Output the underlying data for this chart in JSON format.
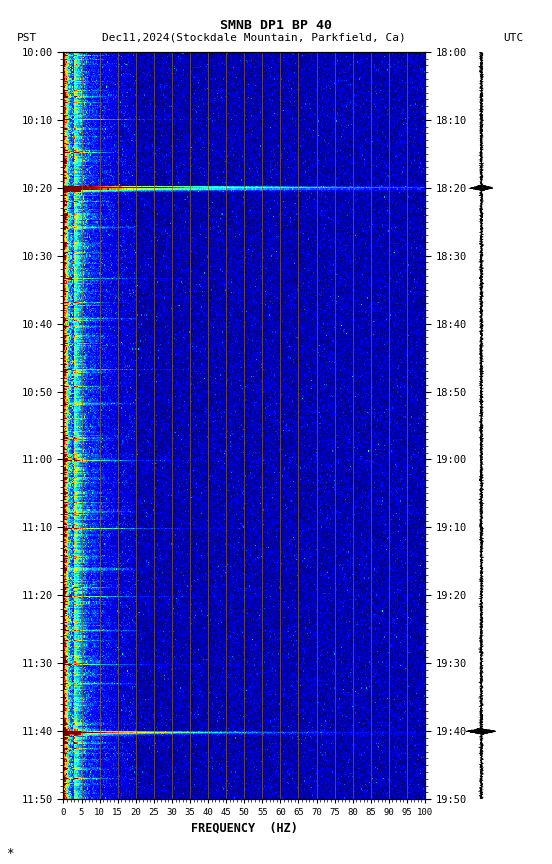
{
  "title_line1": "SMNB DP1 BP 40",
  "title_line2_left": "PST",
  "title_line2_center": "Dec11,2024(Stockdale Mountain, Parkfield, Ca)",
  "title_line2_right": "UTC",
  "xlabel": "FREQUENCY  (HZ)",
  "freq_min": 0,
  "freq_max": 100,
  "duration_minutes": 110,
  "freq_ticks": [
    0,
    5,
    10,
    15,
    20,
    25,
    30,
    35,
    40,
    45,
    50,
    55,
    60,
    65,
    70,
    75,
    80,
    85,
    90,
    95,
    100
  ],
  "time_ticks_pst": [
    "10:00",
    "10:10",
    "10:20",
    "10:30",
    "10:40",
    "10:50",
    "11:00",
    "11:10",
    "11:20",
    "11:30",
    "11:40",
    "11:50"
  ],
  "time_ticks_utc": [
    "18:00",
    "18:10",
    "18:20",
    "18:30",
    "18:40",
    "18:50",
    "19:00",
    "19:10",
    "19:20",
    "19:30",
    "19:40",
    "19:50"
  ],
  "background_color": "#ffffff",
  "colormap": "jet",
  "vline_color": "#8B6914",
  "noise_seed": 42
}
